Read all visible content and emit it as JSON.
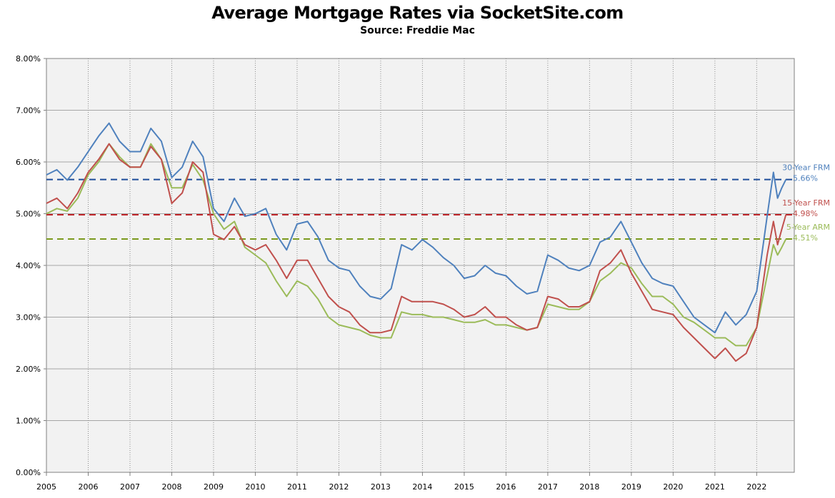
{
  "chart_data": {
    "type": "line",
    "title": "Average Mortgage Rates via SocketSite.com",
    "subtitle": "Source: Freddie Mac",
    "xlabel": "",
    "ylabel": "",
    "xlim": [
      2005,
      2022.9
    ],
    "ylim": [
      0,
      8
    ],
    "y_ticks": [
      "0.00%",
      "1.00%",
      "2.00%",
      "3.00%",
      "4.00%",
      "5.00%",
      "6.00%",
      "7.00%",
      "8.00%"
    ],
    "x_ticks": [
      "2005",
      "2006",
      "2007",
      "2008",
      "2009",
      "2010",
      "2011",
      "2012",
      "2013",
      "2014",
      "2015",
      "2016",
      "2017",
      "2018",
      "2019",
      "2020",
      "2021",
      "2022"
    ],
    "grid": true,
    "legend": "end-labels",
    "series": [
      {
        "name": "30-Year FRM",
        "color": "#4F81BD",
        "end_value_label": "5.66%",
        "reference_line": 5.66,
        "x": [
          2005.0,
          2005.25,
          2005.5,
          2005.75,
          2006.0,
          2006.25,
          2006.5,
          2006.75,
          2007.0,
          2007.25,
          2007.5,
          2007.75,
          2008.0,
          2008.25,
          2008.5,
          2008.75,
          2009.0,
          2009.25,
          2009.5,
          2009.75,
          2010.0,
          2010.25,
          2010.5,
          2010.75,
          2011.0,
          2011.25,
          2011.5,
          2011.75,
          2012.0,
          2012.25,
          2012.5,
          2012.75,
          2013.0,
          2013.25,
          2013.5,
          2013.75,
          2014.0,
          2014.25,
          2014.5,
          2014.75,
          2015.0,
          2015.25,
          2015.5,
          2015.75,
          2016.0,
          2016.25,
          2016.5,
          2016.75,
          2017.0,
          2017.25,
          2017.5,
          2017.75,
          2018.0,
          2018.25,
          2018.5,
          2018.75,
          2019.0,
          2019.25,
          2019.5,
          2019.75,
          2020.0,
          2020.25,
          2020.5,
          2020.75,
          2021.0,
          2021.25,
          2021.5,
          2021.75,
          2022.0,
          2022.25,
          2022.4,
          2022.5,
          2022.6,
          2022.7
        ],
        "y": [
          5.75,
          5.85,
          5.65,
          5.9,
          6.2,
          6.5,
          6.75,
          6.4,
          6.2,
          6.2,
          6.65,
          6.4,
          5.7,
          5.9,
          6.4,
          6.1,
          5.1,
          4.85,
          5.3,
          4.95,
          5.0,
          5.1,
          4.6,
          4.3,
          4.8,
          4.85,
          4.55,
          4.1,
          3.95,
          3.9,
          3.6,
          3.4,
          3.35,
          3.55,
          4.4,
          4.3,
          4.5,
          4.35,
          4.15,
          4.0,
          3.75,
          3.8,
          4.0,
          3.85,
          3.8,
          3.6,
          3.45,
          3.5,
          4.2,
          4.1,
          3.95,
          3.9,
          4.0,
          4.45,
          4.55,
          4.85,
          4.45,
          4.05,
          3.75,
          3.65,
          3.6,
          3.3,
          3.0,
          2.85,
          2.7,
          3.1,
          2.85,
          3.05,
          3.5,
          4.95,
          5.8,
          5.3,
          5.5,
          5.66
        ]
      },
      {
        "name": "15-Year FRM",
        "color": "#C0504D",
        "end_value_label": "4.98%",
        "reference_line": 4.98,
        "x": [
          2005.0,
          2005.25,
          2005.5,
          2005.75,
          2006.0,
          2006.25,
          2006.5,
          2006.75,
          2007.0,
          2007.25,
          2007.5,
          2007.75,
          2008.0,
          2008.25,
          2008.5,
          2008.75,
          2009.0,
          2009.25,
          2009.5,
          2009.75,
          2010.0,
          2010.25,
          2010.5,
          2010.75,
          2011.0,
          2011.25,
          2011.5,
          2011.75,
          2012.0,
          2012.25,
          2012.5,
          2012.75,
          2013.0,
          2013.25,
          2013.5,
          2013.75,
          2014.0,
          2014.25,
          2014.5,
          2014.75,
          2015.0,
          2015.25,
          2015.5,
          2015.75,
          2016.0,
          2016.25,
          2016.5,
          2016.75,
          2017.0,
          2017.25,
          2017.5,
          2017.75,
          2018.0,
          2018.25,
          2018.5,
          2018.75,
          2019.0,
          2019.25,
          2019.5,
          2019.75,
          2020.0,
          2020.25,
          2020.5,
          2020.75,
          2021.0,
          2021.25,
          2021.5,
          2021.75,
          2022.0,
          2022.25,
          2022.4,
          2022.5,
          2022.6,
          2022.7
        ],
        "y": [
          5.2,
          5.3,
          5.1,
          5.4,
          5.8,
          6.05,
          6.35,
          6.05,
          5.9,
          5.9,
          6.3,
          6.05,
          5.2,
          5.4,
          6.0,
          5.8,
          4.6,
          4.5,
          4.75,
          4.4,
          4.3,
          4.4,
          4.1,
          3.75,
          4.1,
          4.1,
          3.75,
          3.4,
          3.2,
          3.1,
          2.85,
          2.7,
          2.7,
          2.75,
          3.4,
          3.3,
          3.3,
          3.3,
          3.25,
          3.15,
          3.0,
          3.05,
          3.2,
          3.0,
          3.0,
          2.85,
          2.75,
          2.8,
          3.4,
          3.35,
          3.2,
          3.2,
          3.3,
          3.9,
          4.05,
          4.3,
          3.85,
          3.5,
          3.15,
          3.1,
          3.05,
          2.8,
          2.6,
          2.4,
          2.2,
          2.4,
          2.15,
          2.3,
          2.8,
          4.2,
          4.85,
          4.4,
          4.7,
          4.98
        ]
      },
      {
        "name": "5-Year ARM",
        "color": "#9BBB59",
        "end_value_label": "4.51%",
        "reference_line": 4.51,
        "x": [
          2005.0,
          2005.25,
          2005.5,
          2005.75,
          2006.0,
          2006.25,
          2006.5,
          2006.75,
          2007.0,
          2007.25,
          2007.5,
          2007.75,
          2008.0,
          2008.25,
          2008.5,
          2008.75,
          2009.0,
          2009.25,
          2009.5,
          2009.75,
          2010.0,
          2010.25,
          2010.5,
          2010.75,
          2011.0,
          2011.25,
          2011.5,
          2011.75,
          2012.0,
          2012.25,
          2012.5,
          2012.75,
          2013.0,
          2013.25,
          2013.5,
          2013.75,
          2014.0,
          2014.25,
          2014.5,
          2014.75,
          2015.0,
          2015.25,
          2015.5,
          2015.75,
          2016.0,
          2016.25,
          2016.5,
          2016.75,
          2017.0,
          2017.25,
          2017.5,
          2017.75,
          2018.0,
          2018.25,
          2018.5,
          2018.75,
          2019.0,
          2019.25,
          2019.5,
          2019.75,
          2020.0,
          2020.25,
          2020.5,
          2020.75,
          2021.0,
          2021.25,
          2021.5,
          2021.75,
          2022.0,
          2022.25,
          2022.4,
          2022.5,
          2022.6,
          2022.7
        ],
        "y": [
          5.0,
          5.1,
          5.05,
          5.3,
          5.75,
          6.0,
          6.35,
          6.1,
          5.9,
          5.9,
          6.35,
          6.05,
          5.5,
          5.5,
          5.95,
          5.65,
          5.0,
          4.7,
          4.85,
          4.35,
          4.2,
          4.05,
          3.7,
          3.4,
          3.7,
          3.6,
          3.35,
          3.0,
          2.85,
          2.8,
          2.75,
          2.65,
          2.6,
          2.6,
          3.1,
          3.05,
          3.05,
          3.0,
          3.0,
          2.95,
          2.9,
          2.9,
          2.95,
          2.85,
          2.85,
          2.8,
          2.75,
          2.8,
          3.25,
          3.2,
          3.15,
          3.15,
          3.3,
          3.7,
          3.85,
          4.05,
          3.95,
          3.65,
          3.4,
          3.4,
          3.25,
          3.0,
          2.9,
          2.75,
          2.6,
          2.6,
          2.45,
          2.45,
          2.8,
          3.8,
          4.4,
          4.2,
          4.35,
          4.51
        ]
      }
    ]
  }
}
